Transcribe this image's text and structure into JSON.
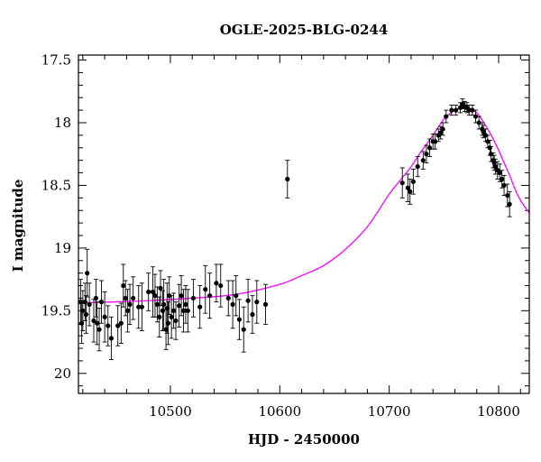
{
  "chart_data": {
    "type": "scatter",
    "title": "OGLE-2025-BLG-0244",
    "xlabel": "HJD - 2450000",
    "ylabel": "I magnitude",
    "xlim": [
      10416,
      10828
    ],
    "ylim": [
      20.16,
      17.46
    ],
    "y_inverted": true,
    "grid": false,
    "xticks": [
      10500,
      10600,
      10700,
      10800
    ],
    "xtick_labels": [
      "10500",
      "10600",
      "10700",
      "10800"
    ],
    "yticks": [
      17.5,
      18,
      18.5,
      19,
      19.5,
      20
    ],
    "ytick_labels": [
      "17.5",
      "18",
      "18.5",
      "19",
      "19.5",
      "20"
    ],
    "colors": {
      "points": "#000000",
      "model": "#ff00ff",
      "frame": "#000000"
    },
    "series": [
      {
        "kind": "points-with-errorbars",
        "x": [
          10418,
          10419,
          10420,
          10422,
          10423,
          10424,
          10426,
          10430,
          10432,
          10433,
          10435,
          10437,
          10440,
          10443,
          10446,
          10452,
          10455,
          10457,
          10459,
          10461,
          10463,
          10466,
          10471,
          10474,
          10480,
          10484,
          10486,
          10488,
          10490,
          10491,
          10493,
          10494,
          10496,
          10497,
          10498,
          10499,
          10501,
          10503,
          10505,
          10508,
          10510,
          10512,
          10514,
          10516,
          10521,
          10527,
          10532,
          10536,
          10542,
          10546,
          10553,
          10557,
          10560,
          10563,
          10567,
          10571,
          10575,
          10579,
          10587,
          10607,
          10712,
          10717,
          10719,
          10722,
          10726,
          10731,
          10734,
          10737,
          10740,
          10742,
          10745,
          10747,
          10749,
          10752,
          10757,
          10761,
          10765,
          10767,
          10769,
          10771,
          10773,
          10776,
          10779,
          10782,
          10785,
          10786,
          10788,
          10790,
          10792,
          10793,
          10795,
          10796,
          10797,
          10799,
          10801,
          10803,
          10805,
          10808,
          10810
        ],
        "y": [
          19.43,
          19.6,
          19.5,
          19.43,
          19.53,
          19.2,
          19.45,
          19.58,
          19.4,
          19.6,
          19.65,
          19.43,
          19.55,
          19.62,
          19.72,
          19.62,
          19.6,
          19.3,
          19.4,
          19.5,
          19.45,
          19.4,
          19.47,
          19.47,
          19.35,
          19.35,
          19.38,
          19.45,
          19.55,
          19.32,
          19.5,
          19.45,
          19.65,
          19.48,
          19.6,
          19.38,
          19.55,
          19.5,
          19.58,
          19.46,
          19.38,
          19.5,
          19.45,
          19.5,
          19.4,
          19.47,
          19.33,
          19.38,
          19.28,
          19.3,
          19.4,
          19.45,
          19.38,
          19.57,
          19.65,
          19.42,
          19.53,
          19.43,
          19.45,
          18.45,
          18.48,
          18.52,
          18.55,
          18.47,
          18.35,
          18.3,
          18.25,
          18.2,
          18.15,
          18.15,
          18.1,
          18.08,
          18.05,
          17.95,
          17.9,
          17.9,
          17.88,
          17.85,
          17.87,
          17.88,
          17.9,
          17.9,
          17.95,
          18.0,
          18.05,
          18.07,
          18.1,
          18.15,
          18.2,
          18.25,
          18.3,
          18.32,
          18.35,
          18.38,
          18.4,
          18.45,
          18.5,
          18.58,
          18.65
        ],
        "yerr": [
          0.18,
          0.16,
          0.16,
          0.15,
          0.15,
          0.19,
          0.17,
          0.17,
          0.15,
          0.17,
          0.17,
          0.17,
          0.2,
          0.16,
          0.17,
          0.16,
          0.16,
          0.17,
          0.14,
          0.17,
          0.16,
          0.17,
          0.17,
          0.19,
          0.15,
          0.2,
          0.17,
          0.14,
          0.16,
          0.14,
          0.16,
          0.2,
          0.16,
          0.2,
          0.17,
          0.15,
          0.17,
          0.14,
          0.15,
          0.17,
          0.16,
          0.17,
          0.15,
          0.17,
          0.15,
          0.17,
          0.19,
          0.18,
          0.15,
          0.17,
          0.14,
          0.19,
          0.16,
          0.16,
          0.18,
          0.17,
          0.15,
          0.17,
          0.16,
          0.15,
          0.12,
          0.11,
          0.1,
          0.1,
          0.08,
          0.07,
          0.07,
          0.07,
          0.06,
          0.06,
          0.05,
          0.05,
          0.05,
          0.05,
          0.04,
          0.04,
          0.04,
          0.04,
          0.04,
          0.04,
          0.04,
          0.04,
          0.05,
          0.05,
          0.05,
          0.05,
          0.05,
          0.05,
          0.06,
          0.06,
          0.06,
          0.06,
          0.06,
          0.07,
          0.07,
          0.07,
          0.08,
          0.09,
          0.1
        ]
      },
      {
        "kind": "model-curve",
        "x": [
          10416,
          10440,
          10480,
          10520,
          10560,
          10600,
          10620,
          10640,
          10660,
          10680,
          10700,
          10710,
          10720,
          10730,
          10740,
          10750,
          10755,
          10760,
          10765,
          10770,
          10775,
          10780,
          10785,
          10790,
          10795,
          10800,
          10805,
          10810,
          10815,
          10820,
          10828
        ],
        "y": [
          19.438,
          19.432,
          19.42,
          19.4,
          19.37,
          19.29,
          19.22,
          19.14,
          19.01,
          18.83,
          18.57,
          18.46,
          18.35,
          18.22,
          18.1,
          17.97,
          17.93,
          17.9,
          17.88,
          17.87,
          17.89,
          17.92,
          17.98,
          18.05,
          18.13,
          18.22,
          18.32,
          18.42,
          18.53,
          18.62,
          18.72
        ]
      }
    ]
  }
}
